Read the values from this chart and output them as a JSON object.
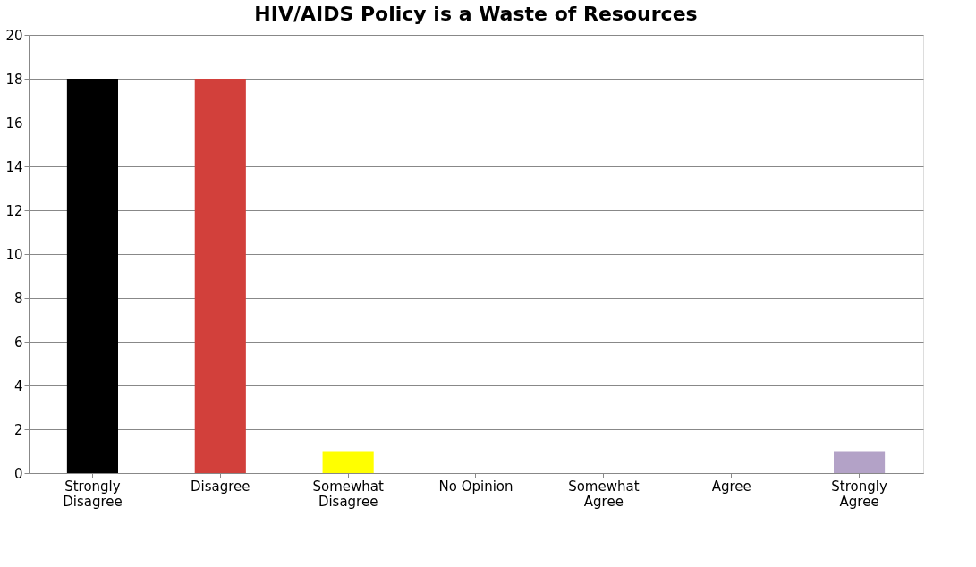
{
  "chart_data": {
    "type": "bar",
    "title": "HIV/AIDS Policy is a Waste of Resources",
    "categories": [
      "Strongly\nDisagree",
      "Disagree",
      "Somewhat\nDisagree",
      "No Opinion",
      "Somewhat\nAgree",
      "Agree",
      "Strongly\nAgree"
    ],
    "values": [
      18,
      18,
      1,
      0,
      0,
      0,
      1
    ],
    "colors": [
      "#000000",
      "#d2403b",
      "#ffff00",
      null,
      null,
      null,
      "#b3a2c7"
    ],
    "ylim": [
      0,
      20
    ],
    "yticks": [
      0,
      2,
      4,
      6,
      8,
      10,
      12,
      14,
      16,
      18,
      20
    ],
    "grid": "y"
  }
}
